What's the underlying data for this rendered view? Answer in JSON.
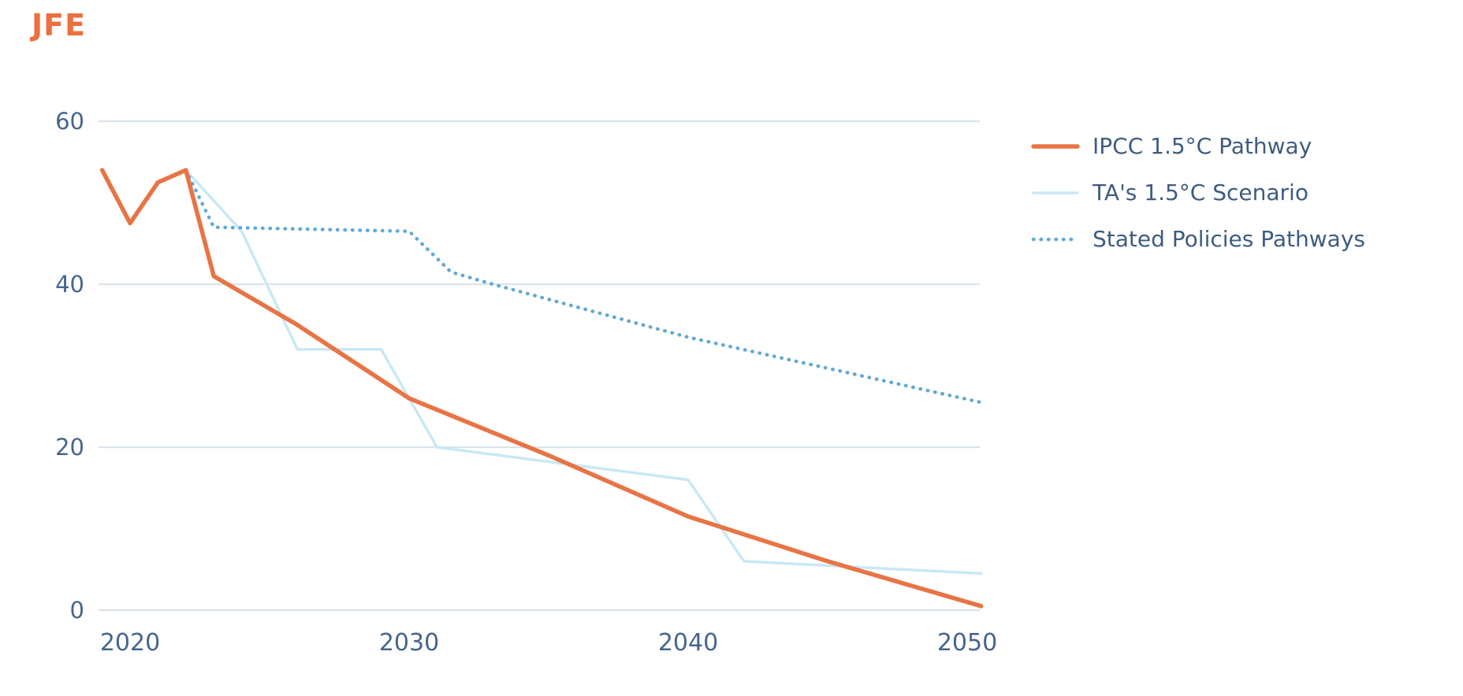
{
  "logo": {
    "text": "JFE"
  },
  "colors": {
    "logo": "#ED6F3D",
    "background": "#FFFFFF",
    "gridline": "#DCE3EB",
    "axis_text": "#46658E",
    "legend_text": "#3E5C80",
    "orange": "#E87445",
    "light_blue": "#C9E8F5",
    "dotted_blue": "#62A8D8"
  },
  "chart_data": {
    "type": "line",
    "title": "",
    "xlabel": "",
    "ylabel": "",
    "x_ticks": [
      2020,
      2030,
      2040,
      2050
    ],
    "y_ticks": [
      0,
      20,
      40,
      60
    ],
    "ylim": [
      0,
      60
    ],
    "xlim": [
      2018.9,
      2050.5
    ],
    "grid": "horizontal-only",
    "legend_position": "top-right",
    "series": [
      {
        "id": "ta-scenario",
        "name": "TA's 1.5°C Scenario",
        "color": "#C9E8F5",
        "style": "solid",
        "width": 3.5,
        "points": [
          [
            2022,
            54
          ],
          [
            2024,
            46.5
          ],
          [
            2026,
            32
          ],
          [
            2029,
            32
          ],
          [
            2031,
            20
          ],
          [
            2040,
            16
          ],
          [
            2042,
            6
          ],
          [
            2050.5,
            4.5
          ]
        ]
      },
      {
        "id": "stated-policies",
        "name": "Stated Policies Pathways",
        "color": "#62A8D8",
        "style": "dotted",
        "width": 4.5,
        "points": [
          [
            2022,
            54
          ],
          [
            2023,
            47
          ],
          [
            2030,
            46.5
          ],
          [
            2031.5,
            41.5
          ],
          [
            2033,
            40
          ],
          [
            2040,
            33.5
          ],
          [
            2050.5,
            25.5
          ]
        ]
      },
      {
        "id": "ipcc-pathway",
        "name": "IPCC 1.5°C Pathway",
        "color": "#E87445",
        "style": "solid",
        "width": 5.5,
        "points": [
          [
            2019,
            54
          ],
          [
            2020,
            47.5
          ],
          [
            2021,
            52.5
          ],
          [
            2022,
            54
          ],
          [
            2023,
            41
          ],
          [
            2026,
            35
          ],
          [
            2030,
            26
          ],
          [
            2035,
            19
          ],
          [
            2040,
            11.5
          ],
          [
            2045,
            6
          ],
          [
            2050.5,
            0.5
          ]
        ]
      }
    ],
    "legend_order": [
      "ipcc-pathway",
      "ta-scenario",
      "stated-policies"
    ]
  }
}
